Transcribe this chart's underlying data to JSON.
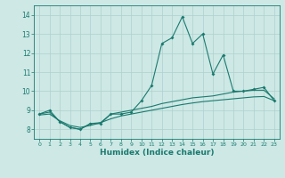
{
  "title": "",
  "xlabel": "Humidex (Indice chaleur)",
  "ylabel": "",
  "background_color": "#cde8e5",
  "grid_color": "#b0d0ce",
  "line_color": "#1a7a6e",
  "xlim": [
    -0.5,
    23.5
  ],
  "ylim": [
    7.5,
    14.5
  ],
  "xticks": [
    0,
    1,
    2,
    3,
    4,
    5,
    6,
    7,
    8,
    9,
    10,
    11,
    12,
    13,
    14,
    15,
    16,
    17,
    18,
    19,
    20,
    21,
    22,
    23
  ],
  "yticks": [
    8,
    9,
    10,
    11,
    12,
    13,
    14
  ],
  "line1": [
    8.8,
    9.0,
    8.4,
    8.1,
    8.0,
    8.3,
    8.3,
    8.8,
    8.8,
    8.9,
    9.5,
    10.3,
    12.5,
    12.8,
    13.9,
    12.5,
    13.0,
    10.9,
    11.9,
    10.0,
    10.0,
    10.1,
    10.2,
    9.5
  ],
  "line2": [
    8.8,
    8.9,
    8.4,
    8.1,
    8.0,
    8.3,
    8.35,
    8.8,
    8.9,
    9.0,
    9.1,
    9.2,
    9.35,
    9.45,
    9.55,
    9.65,
    9.7,
    9.75,
    9.85,
    9.95,
    10.0,
    10.05,
    10.05,
    9.6
  ],
  "line3": [
    8.75,
    8.8,
    8.45,
    8.2,
    8.1,
    8.2,
    8.35,
    8.55,
    8.7,
    8.8,
    8.9,
    9.0,
    9.1,
    9.2,
    9.3,
    9.38,
    9.45,
    9.5,
    9.55,
    9.6,
    9.65,
    9.7,
    9.72,
    9.5
  ]
}
